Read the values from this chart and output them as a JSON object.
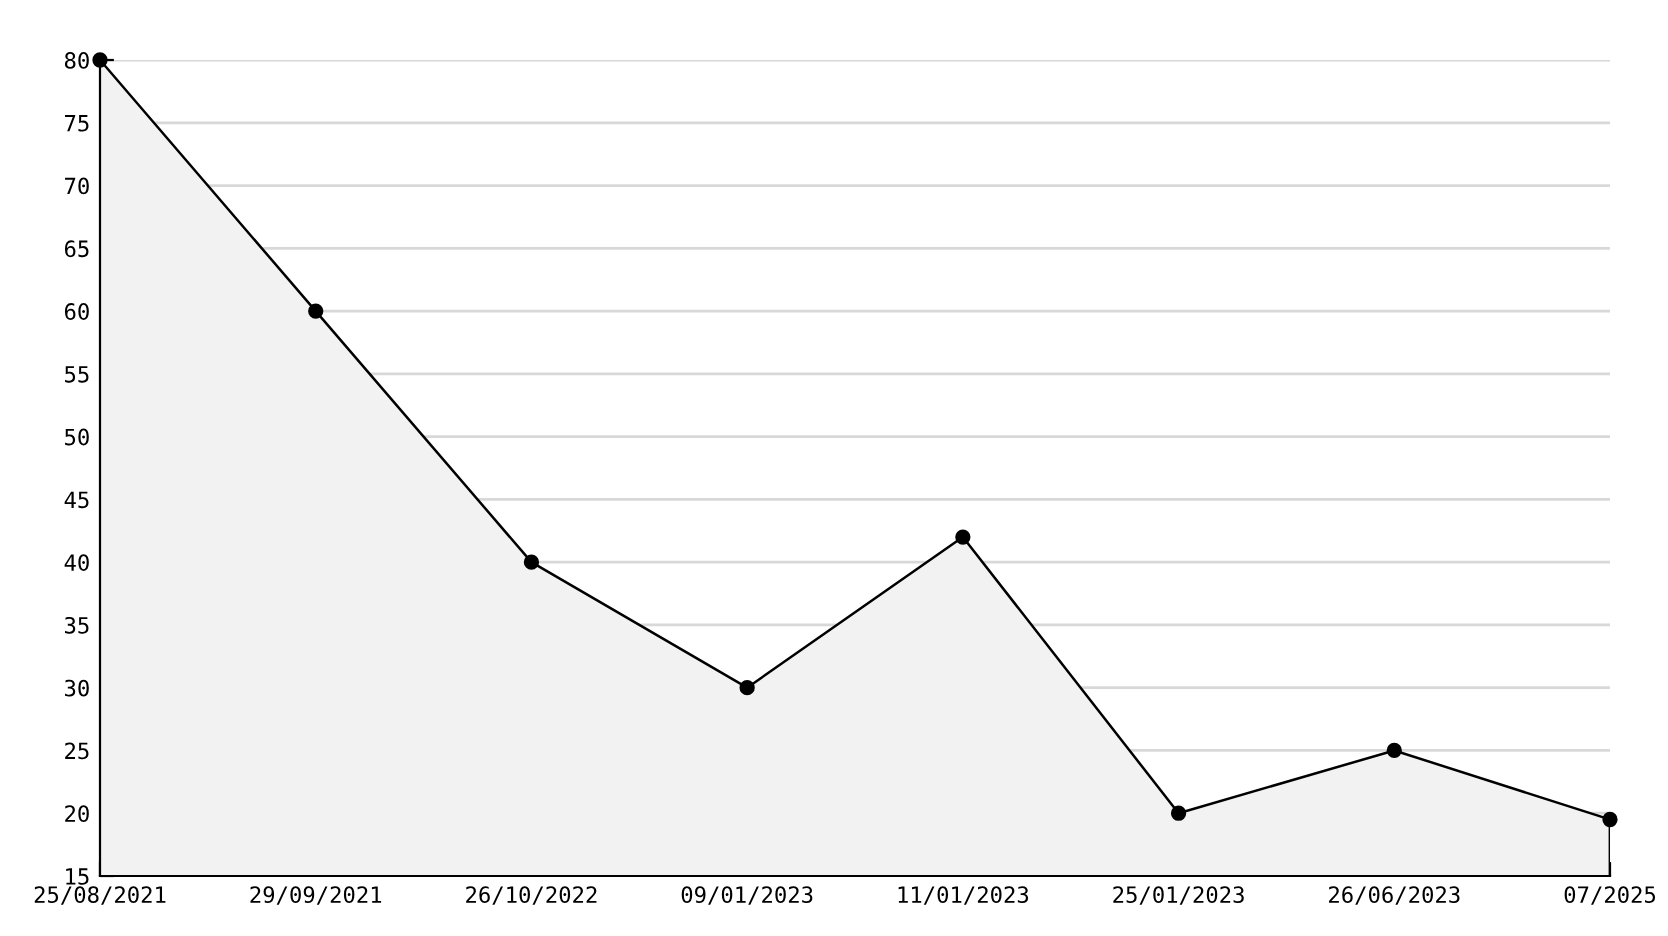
{
  "chart_data": {
    "type": "area",
    "categories": [
      "25/08/2021",
      "29/09/2021",
      "26/10/2022",
      "09/01/2023",
      "11/01/2023",
      "25/01/2023",
      "26/06/2023",
      "07/2025"
    ],
    "series": [
      {
        "color": "#000000",
        "values": [
          80,
          60,
          40,
          30,
          42,
          20,
          25,
          19.5
        ]
      }
    ],
    "ylim": [
      15,
      80
    ],
    "yticks": [
      15,
      20,
      25,
      30,
      35,
      40,
      45,
      50,
      55,
      60,
      65,
      70,
      75,
      80
    ],
    "grid": "y",
    "marker": "circle",
    "line_style": "solid"
  }
}
